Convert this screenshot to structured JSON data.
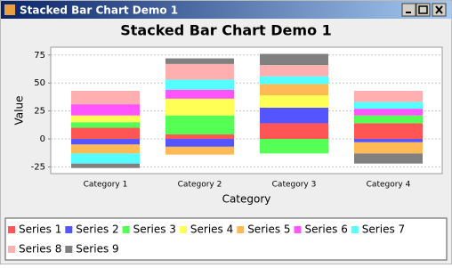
{
  "window_title": "Stacked Bar Chart Demo 1",
  "chart_data": {
    "type": "stacked_bar",
    "title": "Stacked Bar Chart Demo 1",
    "x_label": "Category",
    "y_label": "Value",
    "categories": [
      "Category 1",
      "Category 2",
      "Category 3",
      "Category 4"
    ],
    "series": [
      {
        "name": "Series 1",
        "color": "#ff5555",
        "values": [
          10,
          4,
          14,
          14
        ]
      },
      {
        "name": "Series 2",
        "color": "#5555ff",
        "values": [
          -5,
          -7,
          14,
          -3
        ]
      },
      {
        "name": "Series 3",
        "color": "#55ff55",
        "values": [
          5,
          17,
          -13,
          7
        ]
      },
      {
        "name": "Series 4",
        "color": "#ffff55",
        "values": [
          6,
          15,
          11,
          0
        ]
      },
      {
        "name": "Series 5",
        "color": "#ffb955",
        "values": [
          -8,
          -7,
          10,
          -10
        ]
      },
      {
        "name": "Series 6",
        "color": "#ff55ff",
        "values": [
          10,
          8,
          0,
          6
        ]
      },
      {
        "name": "Series 7",
        "color": "#55ffff",
        "values": [
          -9,
          9,
          7,
          6
        ]
      },
      {
        "name": "Series 8",
        "color": "#ffafaf",
        "values": [
          12,
          14,
          10,
          10
        ]
      },
      {
        "name": "Series 9",
        "color": "#808080",
        "values": [
          -4,
          5,
          10,
          -9
        ]
      }
    ],
    "ylim": [
      -31,
      82
    ],
    "yticks": [
      -25,
      0,
      25,
      50,
      75
    ],
    "grid": true,
    "legend": "bottom"
  }
}
